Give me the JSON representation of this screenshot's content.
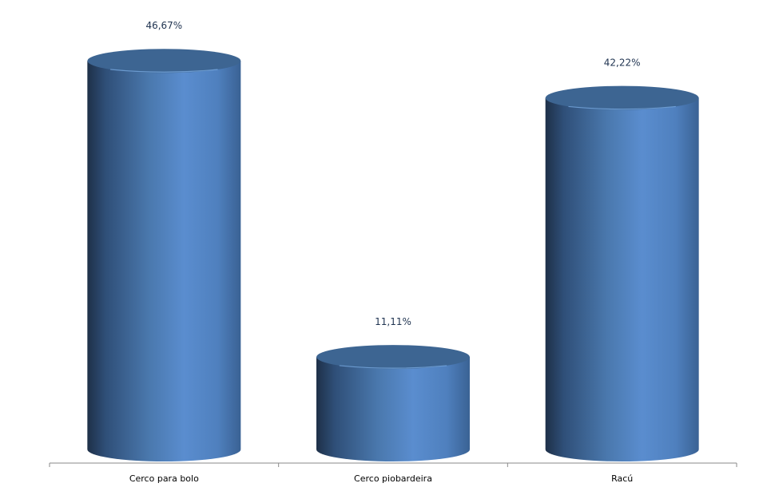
{
  "chart_data": {
    "type": "bar",
    "style": "3d-cylinder",
    "categories": [
      "Cerco para bolo",
      "Cerco piobardeira",
      "Racú"
    ],
    "values": [
      46.67,
      11.11,
      42.22
    ],
    "data_labels": [
      "46,67%",
      "11,11%",
      "42,22%"
    ],
    "title": "",
    "xlabel": "",
    "ylabel": "",
    "grid": false,
    "legend": "none",
    "colors": {
      "bar": "#4f81bd",
      "bar_dark": "#1f3350",
      "bar_light": "#5b8fd2",
      "top": "#3d6592",
      "axis": "#8a8a8a",
      "label": "#1f3350"
    }
  }
}
